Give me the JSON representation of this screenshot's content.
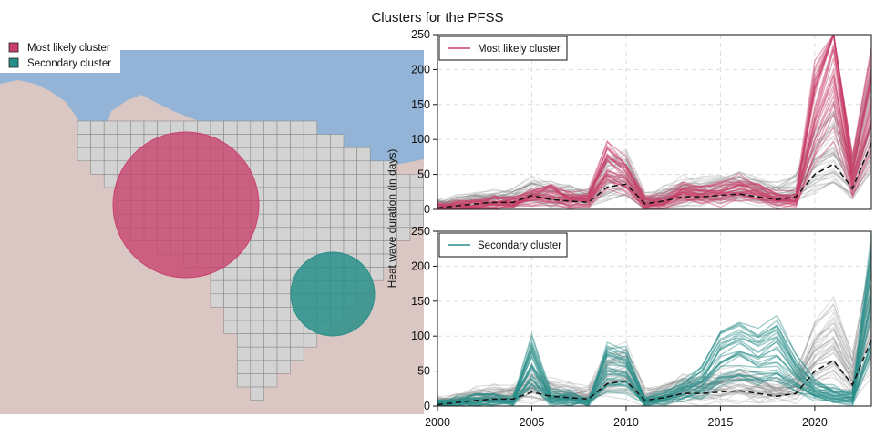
{
  "title": "Clusters for the PFSS",
  "colors": {
    "most_likely": "#c8416b",
    "secondary": "#2a8f8a",
    "background_series": "#808080",
    "median": "#111111",
    "sea": "#93b4d6",
    "land": "#dac7c4",
    "region_fill": "#d3d3d3",
    "grid_line": "#8a8a8a"
  },
  "map": {
    "legend": [
      {
        "label": "Most likely cluster",
        "color": "#c8416b"
      },
      {
        "label": "Secondary cluster",
        "color": "#2a8f8a"
      }
    ],
    "clusters": [
      {
        "name": "Most likely cluster",
        "shape": "circle",
        "fill": "#c8416b"
      },
      {
        "name": "Secondary cluster",
        "shape": "circle",
        "fill": "#2a8f8a"
      }
    ]
  },
  "shared_ylabel": "Heat wave duration (in days)",
  "chart_data": [
    {
      "type": "line",
      "legend": "Most likely cluster",
      "highlight_color": "#c8416b",
      "xlim": [
        2000,
        2023
      ],
      "ylim": [
        0,
        250
      ],
      "xticks": [
        2000,
        2005,
        2010,
        2015,
        2020
      ],
      "yticks": [
        0,
        50,
        100,
        150,
        200,
        250
      ],
      "grid": true,
      "legend_position": "top-left",
      "x": [
        2000,
        2001,
        2002,
        2003,
        2004,
        2005,
        2006,
        2007,
        2008,
        2009,
        2010,
        2011,
        2012,
        2013,
        2014,
        2015,
        2016,
        2017,
        2018,
        2019,
        2020,
        2021,
        2022,
        2023
      ],
      "series": [
        {
          "name": "Most likely cluster",
          "role": "cluster_mean",
          "values": [
            2,
            4,
            6,
            8,
            8,
            15,
            20,
            12,
            12,
            55,
            40,
            8,
            10,
            20,
            18,
            20,
            25,
            20,
            12,
            12,
            120,
            200,
            40,
            130
          ]
        },
        {
          "role": "background_median",
          "values": [
            2,
            5,
            8,
            10,
            10,
            20,
            14,
            12,
            10,
            32,
            36,
            8,
            12,
            18,
            18,
            20,
            22,
            18,
            14,
            18,
            50,
            65,
            30,
            95
          ]
        }
      ]
    },
    {
      "type": "line",
      "legend": "Secondary cluster",
      "highlight_color": "#2a8f8a",
      "xlim": [
        2000,
        2023
      ],
      "ylim": [
        0,
        250
      ],
      "xticks": [
        2000,
        2005,
        2010,
        2015,
        2020
      ],
      "yticks": [
        0,
        50,
        100,
        150,
        200,
        250
      ],
      "grid": true,
      "legend_position": "top-left",
      "x": [
        2000,
        2001,
        2002,
        2003,
        2004,
        2005,
        2006,
        2007,
        2008,
        2009,
        2010,
        2011,
        2012,
        2013,
        2014,
        2015,
        2016,
        2017,
        2018,
        2019,
        2020,
        2021,
        2022,
        2023
      ],
      "series": [
        {
          "name": "Secondary cluster",
          "role": "cluster_mean",
          "values": [
            2,
            5,
            8,
            8,
            5,
            55,
            10,
            10,
            5,
            50,
            45,
            5,
            10,
            20,
            30,
            60,
            70,
            60,
            70,
            40,
            20,
            15,
            10,
            140
          ]
        },
        {
          "role": "background_median",
          "values": [
            2,
            5,
            8,
            10,
            10,
            20,
            14,
            12,
            10,
            32,
            36,
            8,
            12,
            18,
            18,
            20,
            22,
            18,
            14,
            18,
            50,
            65,
            30,
            95
          ]
        }
      ]
    }
  ]
}
